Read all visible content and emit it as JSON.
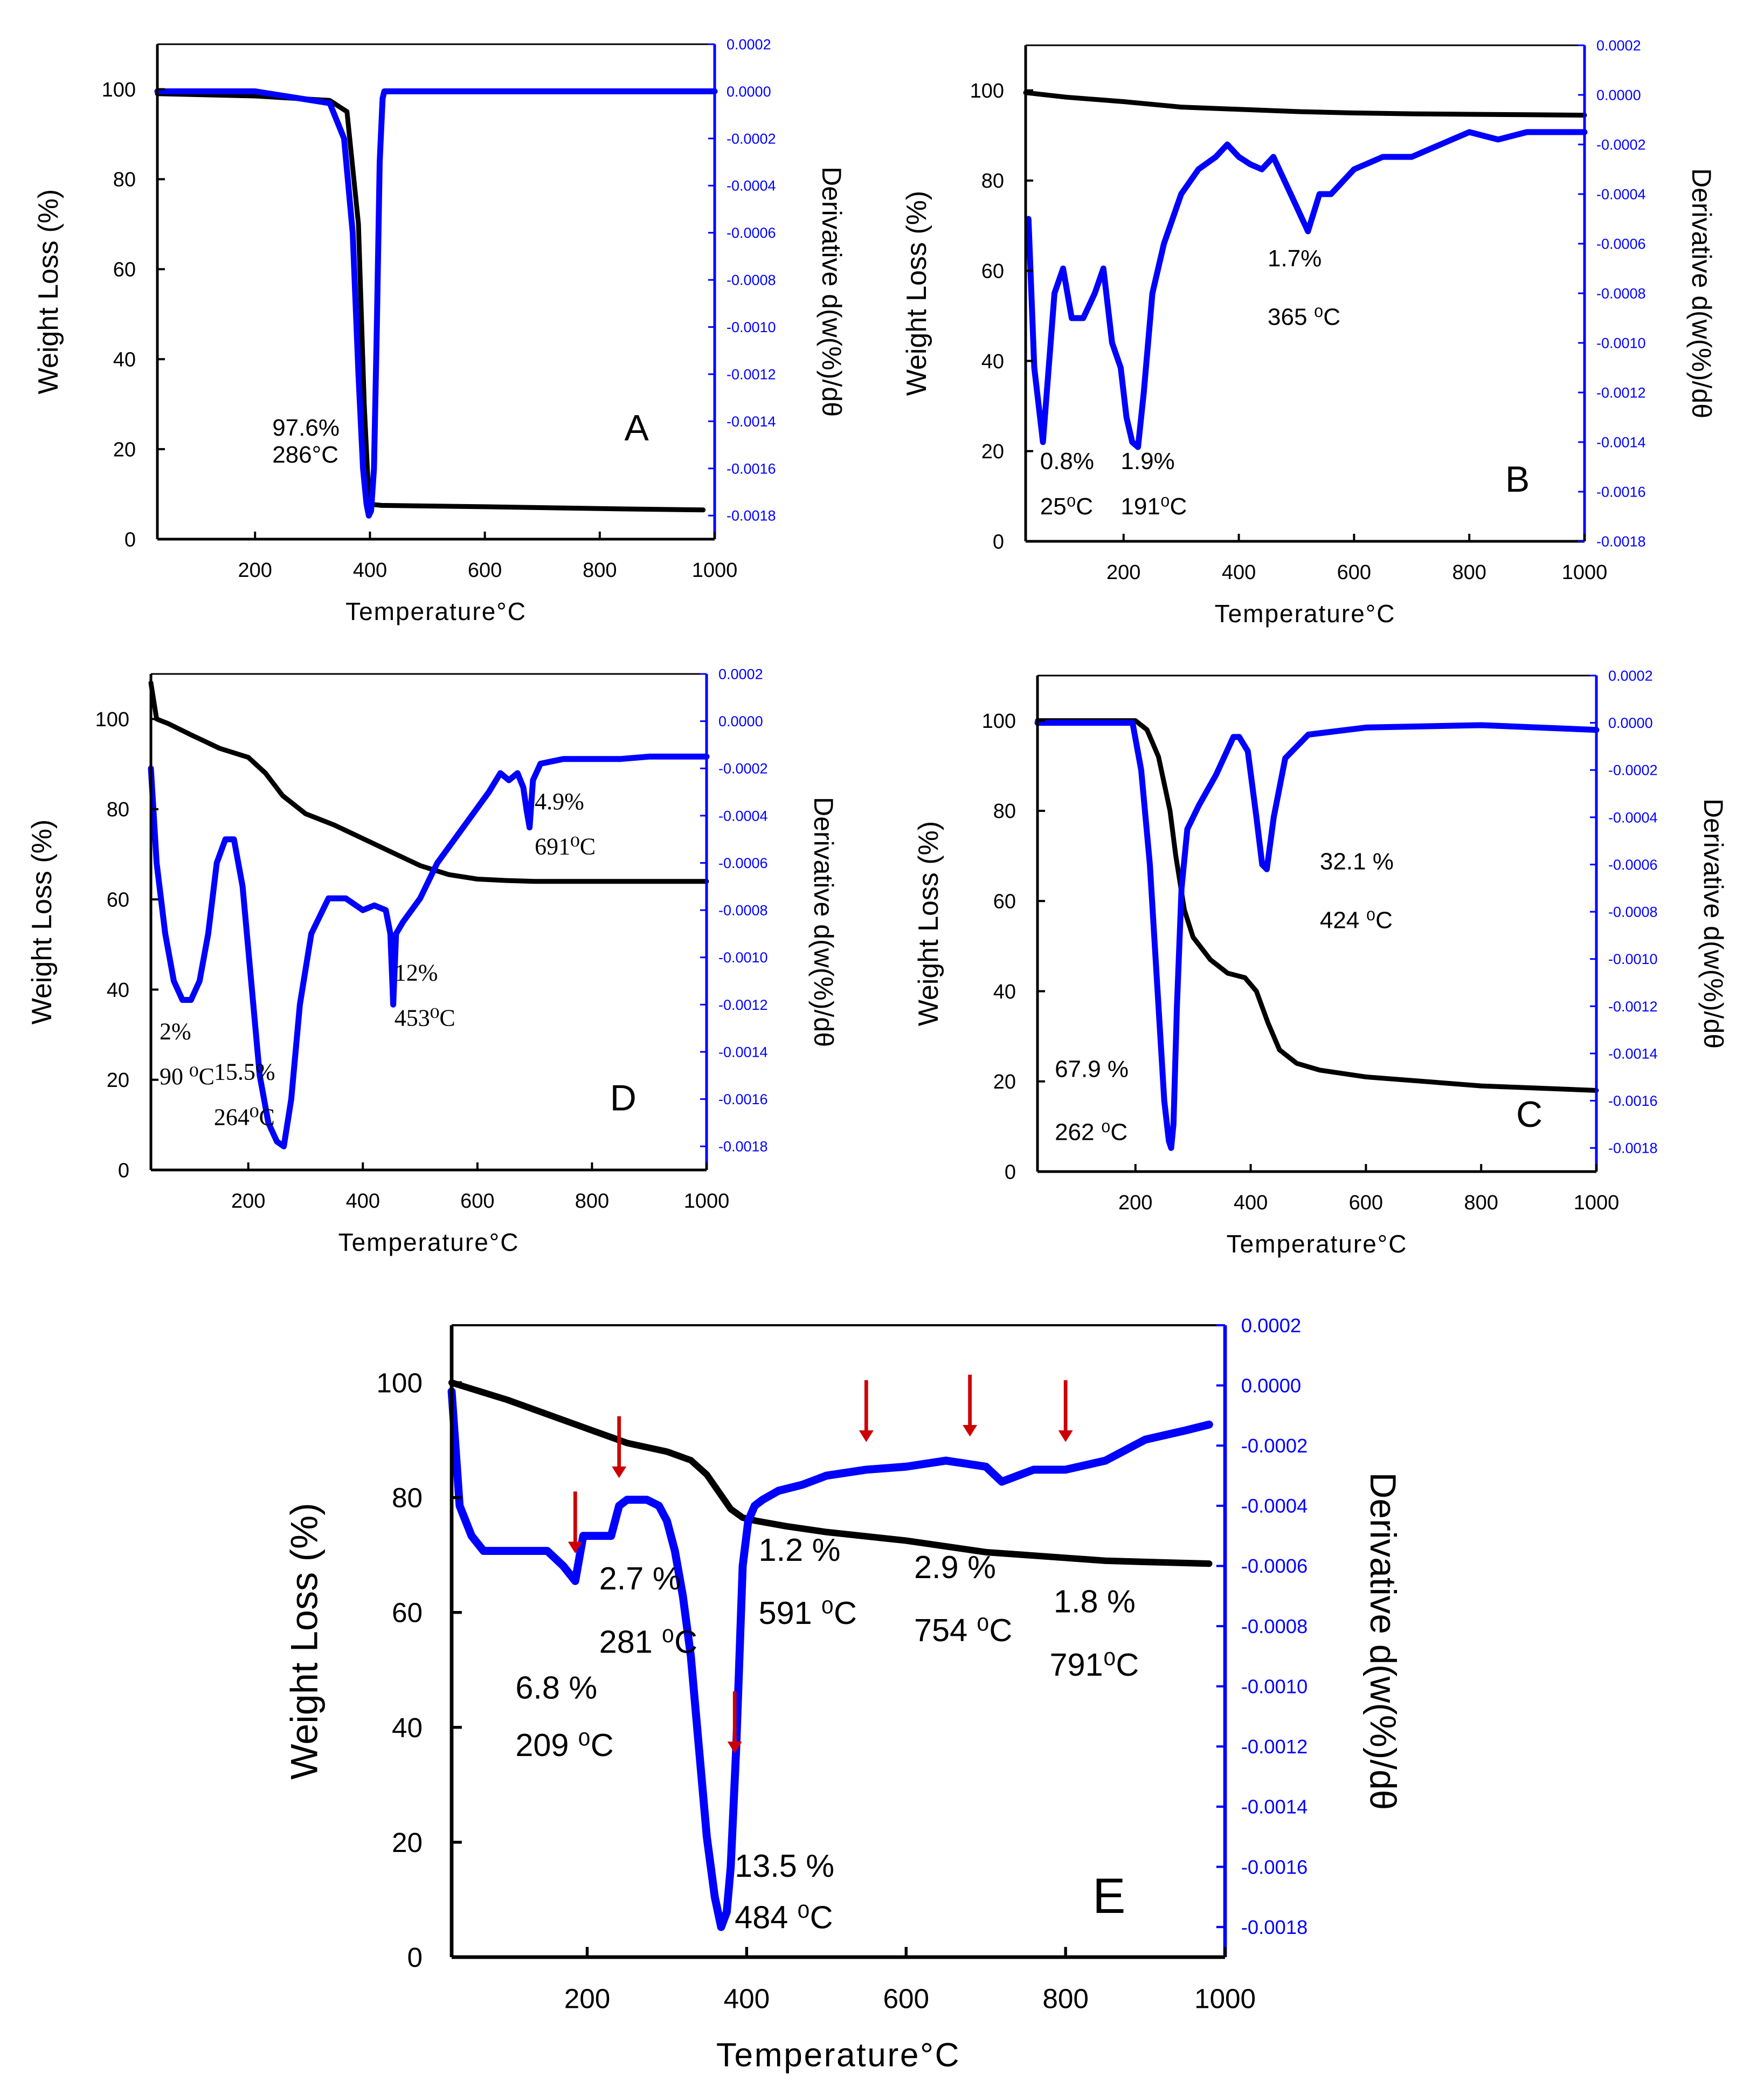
{
  "chart_data": [
    {
      "type": "line",
      "panel_label": "A",
      "xlabel": "Temperature°C",
      "ylabel": "Weight Loss (%)",
      "y2label": "Derivative d(w(%)/dθ",
      "xlim": [
        30,
        1000
      ],
      "ylim": [
        0,
        110
      ],
      "y2lim": [
        -0.0019,
        0.0002
      ],
      "xticks": [
        "200",
        "400",
        "600",
        "800",
        "1000"
      ],
      "yticks": [
        "0",
        "20",
        "40",
        "60",
        "80",
        "100"
      ],
      "y2ticks": [
        "0.0002",
        "0.0000",
        "-0.0002",
        "-0.0004",
        "-0.0006",
        "-0.0008",
        "-0.0010",
        "-0.0012",
        "-0.0014",
        "-0.0016",
        "-0.0018"
      ],
      "series": [
        {
          "axis": "left",
          "color": "#000000",
          "x": [
            30,
            200,
            330,
            360,
            380,
            390,
            398,
            405,
            420,
            600,
            800,
            980
          ],
          "y": [
            99,
            98.5,
            97.5,
            95,
            70,
            30,
            9,
            7.7,
            7.5,
            7.2,
            6.8,
            6.5
          ]
        },
        {
          "axis": "right",
          "color": "#0000ff",
          "x": [
            30,
            200,
            330,
            355,
            370,
            380,
            388,
            394,
            398,
            402,
            407,
            412,
            417,
            422,
            425,
            1000
          ],
          "y": [
            0,
            0,
            -5e-05,
            -0.0002,
            -0.0006,
            -0.0012,
            -0.0016,
            -0.00175,
            -0.0018,
            -0.00178,
            -0.0016,
            -0.001,
            -0.0003,
            -3e-05,
            0,
            0
          ]
        }
      ],
      "annotations": [
        {
          "text": "97.6%",
          "x": 230,
          "y": 23
        },
        {
          "text": "286°C",
          "x": 230,
          "y": 17
        }
      ]
    },
    {
      "type": "line",
      "panel_label": "B",
      "xlabel": "Temperature°C",
      "ylabel": "Weight Loss (%)",
      "y2label": "Derivative d(w(%)/dθ",
      "xlim": [
        30,
        1000
      ],
      "ylim": [
        0,
        110
      ],
      "y2lim": [
        -0.0018,
        0.0002
      ],
      "xticks": [
        "200",
        "400",
        "600",
        "800",
        "1000"
      ],
      "yticks": [
        "0",
        "20",
        "40",
        "60",
        "80",
        "100"
      ],
      "y2ticks": [
        "0.0002",
        "0.0000",
        "-0.0002",
        "-0.0004",
        "-0.0006",
        "-0.0008",
        "-0.0010",
        "-0.0012",
        "-0.0014",
        "-0.0016",
        "-0.0018"
      ],
      "series": [
        {
          "axis": "left",
          "color": "#000000",
          "x": [
            30,
            100,
            200,
            300,
            400,
            500,
            600,
            700,
            800,
            900,
            1000
          ],
          "y": [
            99.5,
            98.5,
            97.5,
            96.3,
            95.8,
            95.3,
            95.0,
            94.8,
            94.7,
            94.6,
            94.5
          ]
        },
        {
          "axis": "right",
          "color": "#0000ff",
          "x": [
            35,
            45,
            60,
            80,
            95,
            110,
            130,
            150,
            165,
            180,
            195,
            205,
            215,
            225,
            235,
            250,
            270,
            300,
            330,
            360,
            380,
            400,
            420,
            440,
            460,
            480,
            500,
            520,
            540,
            560,
            580,
            600,
            650,
            700,
            750,
            800,
            850,
            900,
            950,
            1000
          ],
          "y": [
            -0.0005,
            -0.0011,
            -0.0014,
            -0.0008,
            -0.0007,
            -0.0009,
            -0.0009,
            -0.0008,
            -0.0007,
            -0.001,
            -0.0011,
            -0.0013,
            -0.0014,
            -0.00142,
            -0.0012,
            -0.0008,
            -0.0006,
            -0.0004,
            -0.0003,
            -0.00025,
            -0.0002,
            -0.00025,
            -0.00028,
            -0.0003,
            -0.00025,
            -0.00035,
            -0.00045,
            -0.00055,
            -0.0004,
            -0.0004,
            -0.00035,
            -0.0003,
            -0.00025,
            -0.00025,
            -0.0002,
            -0.00015,
            -0.00018,
            -0.00015,
            -0.00015,
            -0.00015
          ]
        }
      ],
      "annotations": [
        {
          "text": "0.8%",
          "x": 55,
          "y": 16
        },
        {
          "text": "25⁰C",
          "x": 55,
          "y": 6
        },
        {
          "text": "1.9%",
          "x": 195,
          "y": 16
        },
        {
          "text": "191⁰C",
          "x": 195,
          "y": 6
        },
        {
          "text": "1.7%",
          "x": 450,
          "y": 61
        },
        {
          "text": "365 ⁰C",
          "x": 450,
          "y": 48
        }
      ]
    },
    {
      "type": "line",
      "panel_label": "D",
      "xlabel": "Temperature°C",
      "ylabel": "Weight Loss (%)",
      "y2label": "Derivative d(w(%)/dθ",
      "xlim": [
        30,
        1000
      ],
      "ylim": [
        0,
        110
      ],
      "y2lim": [
        -0.0019,
        0.0002
      ],
      "xticks": [
        "200",
        "400",
        "600",
        "800",
        "1000"
      ],
      "yticks": [
        "0",
        "20",
        "40",
        "60",
        "80",
        "100"
      ],
      "y2ticks": [
        "0.0002",
        "0.0000",
        "-0.0002",
        "-0.0004",
        "-0.0006",
        "-0.0008",
        "-0.0010",
        "-0.0012",
        "-0.0014",
        "-0.0016",
        "-0.0018"
      ],
      "series": [
        {
          "axis": "left",
          "color": "#000000",
          "x": [
            30,
            40,
            60,
            100,
            150,
            200,
            230,
            260,
            300,
            350,
            400,
            450,
            500,
            550,
            600,
            650,
            700,
            800,
            1000
          ],
          "y": [
            108,
            100,
            99,
            96.5,
            93.5,
            91.5,
            88,
            83,
            79,
            76.5,
            73.5,
            70.5,
            67.5,
            65.5,
            64.5,
            64.2,
            64,
            64,
            64
          ]
        },
        {
          "axis": "right",
          "color": "#0000ff",
          "x": [
            30,
            40,
            55,
            70,
            85,
            100,
            115,
            130,
            145,
            160,
            175,
            190,
            205,
            220,
            235,
            250,
            262,
            275,
            290,
            310,
            340,
            370,
            400,
            420,
            440,
            448,
            453,
            458,
            470,
            500,
            530,
            560,
            590,
            620,
            640,
            655,
            670,
            680,
            686,
            691,
            697,
            710,
            750,
            800,
            850,
            900,
            950,
            1000
          ],
          "y": [
            -0.0002,
            -0.0006,
            -0.0009,
            -0.0011,
            -0.00118,
            -0.00118,
            -0.0011,
            -0.0009,
            -0.0006,
            -0.0005,
            -0.0005,
            -0.0007,
            -0.0011,
            -0.0015,
            -0.0017,
            -0.00178,
            -0.0018,
            -0.0016,
            -0.0012,
            -0.0009,
            -0.00075,
            -0.00075,
            -0.0008,
            -0.00078,
            -0.0008,
            -0.0009,
            -0.0012,
            -0.0009,
            -0.00085,
            -0.00075,
            -0.0006,
            -0.0005,
            -0.0004,
            -0.0003,
            -0.00022,
            -0.00025,
            -0.00022,
            -0.00028,
            -0.00038,
            -0.00045,
            -0.00025,
            -0.00018,
            -0.00016,
            -0.00016,
            -0.00016,
            -0.00015,
            -0.00015,
            -0.00015
          ]
        }
      ],
      "annotations": [
        {
          "text": "2%",
          "x": 45,
          "y": 29
        },
        {
          "text": "90 ⁰C",
          "x": 45,
          "y": 19
        },
        {
          "text": "15.5%",
          "x": 140,
          "y": 20
        },
        {
          "text": "264⁰C",
          "x": 140,
          "y": 10
        },
        {
          "text": "12%",
          "x": 455,
          "y": 42
        },
        {
          "text": "453⁰C",
          "x": 455,
          "y": 32
        },
        {
          "text": "4.9%",
          "x": 700,
          "y": 80
        },
        {
          "text": "691⁰C",
          "x": 700,
          "y": 70
        }
      ]
    },
    {
      "type": "line",
      "panel_label": "C",
      "xlabel": "Temperature°C",
      "ylabel": "Weight Loss (%)",
      "y2label": "Derivative d(w(%)/dθ",
      "xlim": [
        30,
        1000
      ],
      "ylim": [
        0,
        110
      ],
      "y2lim": [
        -0.0019,
        0.0002
      ],
      "xticks": [
        "200",
        "400",
        "600",
        "800",
        "1000"
      ],
      "yticks": [
        "0",
        "20",
        "40",
        "60",
        "80",
        "100"
      ],
      "y2ticks": [
        "0.0002",
        "0.0000",
        "-0.0002",
        "-0.0004",
        "-0.0006",
        "-0.0008",
        "-0.0010",
        "-0.0012",
        "-0.0014",
        "-0.0016",
        "-0.0018"
      ],
      "series": [
        {
          "axis": "left",
          "color": "#000000",
          "x": [
            30,
            150,
            200,
            220,
            240,
            260,
            270,
            285,
            300,
            330,
            360,
            390,
            410,
            430,
            450,
            480,
            520,
            600,
            700,
            800,
            900,
            1000
          ],
          "y": [
            100,
            100,
            100,
            98,
            92,
            80,
            70,
            58,
            52,
            47,
            44,
            43,
            40,
            33,
            27,
            24,
            22.5,
            21,
            20,
            19,
            18.5,
            18
          ]
        },
        {
          "axis": "right",
          "color": "#0000ff",
          "x": [
            30,
            150,
            195,
            210,
            225,
            240,
            250,
            258,
            262,
            266,
            272,
            280,
            290,
            310,
            340,
            370,
            380,
            395,
            410,
            420,
            428,
            440,
            460,
            500,
            600,
            800,
            1000
          ],
          "y": [
            0,
            0,
            0,
            -0.0002,
            -0.0006,
            -0.0012,
            -0.0016,
            -0.00177,
            -0.0018,
            -0.0017,
            -0.0012,
            -0.0007,
            -0.00045,
            -0.00035,
            -0.00022,
            -6e-05,
            -6e-05,
            -0.00012,
            -0.0004,
            -0.0006,
            -0.00062,
            -0.0004,
            -0.00015,
            -5e-05,
            -2e-05,
            -1e-05,
            -3e-05
          ]
        }
      ],
      "annotations": [
        {
          "text": "67.9 %",
          "x": 60,
          "y": 21
        },
        {
          "text": "262 ⁰C",
          "x": 60,
          "y": 7
        },
        {
          "text": "32.1 %",
          "x": 520,
          "y": 67
        },
        {
          "text": "424 ⁰C",
          "x": 520,
          "y": 54
        }
      ]
    },
    {
      "type": "line",
      "panel_label": "E",
      "xlabel": "Temperature°C",
      "ylabel": "Weight Loss (%)",
      "y2label": "Derivative d(w(%)/dθ",
      "xlim": [
        30,
        1000
      ],
      "ylim": [
        0,
        110
      ],
      "y2lim": [
        -0.0019,
        0.0002
      ],
      "xticks": [
        "200",
        "400",
        "600",
        "800",
        "1000"
      ],
      "yticks": [
        "0",
        "20",
        "40",
        "60",
        "80",
        "100"
      ],
      "y2ticks": [
        "0.0002",
        "0.0000",
        "-0.0002",
        "-0.0004",
        "-0.0006",
        "-0.0008",
        "-0.0010",
        "-0.0012",
        "-0.0014",
        "-0.0016",
        "-0.0018"
      ],
      "series": [
        {
          "axis": "left",
          "color": "#000000",
          "x": [
            30,
            100,
            200,
            250,
            300,
            330,
            350,
            365,
            380,
            395,
            410,
            450,
            500,
            600,
            700,
            750,
            800,
            850,
            900,
            980
          ],
          "y": [
            100,
            97,
            92,
            89.5,
            88,
            86.5,
            84,
            81,
            78,
            76.5,
            76,
            75,
            74,
            72.5,
            70.5,
            70,
            69.5,
            69,
            68.8,
            68.5
          ]
        },
        {
          "axis": "right",
          "color": "#0000ff",
          "x": [
            30,
            40,
            55,
            70,
            90,
            120,
            150,
            170,
            185,
            195,
            210,
            220,
            230,
            240,
            250,
            260,
            275,
            290,
            300,
            310,
            320,
            330,
            340,
            350,
            360,
            368,
            375,
            380,
            387,
            395,
            402,
            410,
            420,
            440,
            470,
            500,
            550,
            600,
            650,
            700,
            720,
            740,
            760,
            800,
            850,
            900,
            950,
            980
          ],
          "y": [
            -2e-05,
            -0.0004,
            -0.0005,
            -0.00055,
            -0.00055,
            -0.00055,
            -0.00055,
            -0.0006,
            -0.00065,
            -0.0005,
            -0.0005,
            -0.0005,
            -0.0005,
            -0.0004,
            -0.00038,
            -0.00038,
            -0.00038,
            -0.0004,
            -0.00045,
            -0.00055,
            -0.0007,
            -0.0009,
            -0.0012,
            -0.0015,
            -0.0017,
            -0.0018,
            -0.00175,
            -0.0016,
            -0.0012,
            -0.0006,
            -0.00045,
            -0.0004,
            -0.00038,
            -0.00035,
            -0.00033,
            -0.0003,
            -0.00028,
            -0.00027,
            -0.00025,
            -0.00027,
            -0.00032,
            -0.0003,
            -0.00028,
            -0.00028,
            -0.00025,
            -0.00018,
            -0.00015,
            -0.00013
          ]
        }
      ],
      "arrows_x": [
        185,
        240,
        385,
        550,
        680,
        800
      ],
      "annotations": [
        {
          "text": "6.8 %",
          "x": 110,
          "y": 45
        },
        {
          "text": "209 ⁰C",
          "x": 110,
          "y": 35
        },
        {
          "text": "2.7 %",
          "x": 215,
          "y": 64
        },
        {
          "text": "281 ⁰C",
          "x": 215,
          "y": 53
        },
        {
          "text": "13.5 %",
          "x": 385,
          "y": 14
        },
        {
          "text": "484 ⁰C",
          "x": 385,
          "y": 5
        },
        {
          "text": "1.2 %",
          "x": 415,
          "y": 69
        },
        {
          "text": "591 ⁰C",
          "x": 415,
          "y": 58
        },
        {
          "text": "2.9 %",
          "x": 610,
          "y": 66
        },
        {
          "text": "754 ⁰C",
          "x": 610,
          "y": 55
        },
        {
          "text": "1.8 %",
          "x": 785,
          "y": 60
        },
        {
          "text": "791⁰C",
          "x": 780,
          "y": 49
        }
      ]
    }
  ],
  "colors": {
    "tg": "#000000",
    "dtg": "#0000ff",
    "right_axis": "#0000ff",
    "arrow": "#cc0000"
  },
  "icons": {
    "arrow": "red-down-arrow"
  }
}
